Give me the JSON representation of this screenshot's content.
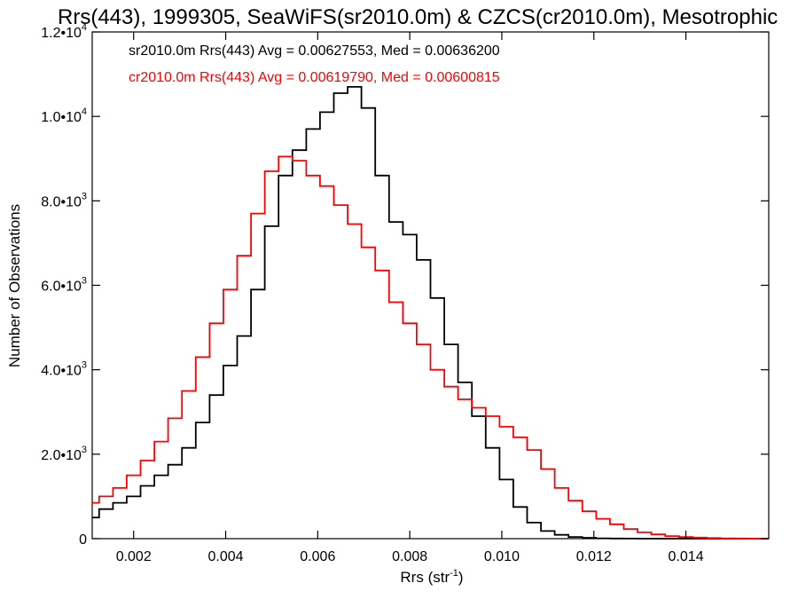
{
  "chart_data": {
    "type": "line",
    "title": "Rrs(443), 1999305, SeaWiFS(sr2010.0m) & CZCS(cr2010.0m), Mesotrophic",
    "xlabel": "Rrs (str",
    "xlabel_exp": "-1",
    "xlabel_close": ")",
    "ylabel": "Number of Observations",
    "xlim": [
      0.0011,
      0.0158
    ],
    "ylim": [
      0,
      12000
    ],
    "x_ticks": [
      {
        "value": 0.002,
        "label": "0.002"
      },
      {
        "value": 0.004,
        "label": "0.004"
      },
      {
        "value": 0.006,
        "label": "0.006"
      },
      {
        "value": 0.008,
        "label": "0.008"
      },
      {
        "value": 0.01,
        "label": "0.010"
      },
      {
        "value": 0.012,
        "label": "0.012"
      },
      {
        "value": 0.014,
        "label": "0.014"
      }
    ],
    "y_ticks": [
      {
        "value": 0,
        "label": "0",
        "exp": ""
      },
      {
        "value": 2000,
        "label": "2.0•10",
        "exp": "3"
      },
      {
        "value": 4000,
        "label": "4.0•10",
        "exp": "3"
      },
      {
        "value": 6000,
        "label": "6.0•10",
        "exp": "3"
      },
      {
        "value": 8000,
        "label": "8.0•10",
        "exp": "3"
      },
      {
        "value": 10000,
        "label": "1.0•10",
        "exp": "4"
      },
      {
        "value": 12000,
        "label": "1.2•10",
        "exp": "4"
      }
    ],
    "legend": [
      {
        "text": "sr2010.0m Rrs(443) Avg = 0.00627553, Med = 0.00636200",
        "color": "#000000"
      },
      {
        "text": "cr2010.0m Rrs(443) Avg = 0.00619790, Med = 0.00600815",
        "color": "#ff0000"
      }
    ],
    "series": [
      {
        "key": "sr2010.0m",
        "color": "#000000",
        "x": [
          0.0011,
          0.0014,
          0.0017,
          0.002,
          0.0023,
          0.0026,
          0.0029,
          0.0032,
          0.0035,
          0.0038,
          0.0041,
          0.0044,
          0.0047,
          0.005,
          0.0053,
          0.0056,
          0.0059,
          0.0062,
          0.0065,
          0.0068,
          0.0071,
          0.0074,
          0.0077,
          0.008,
          0.0083,
          0.0086,
          0.0089,
          0.0092,
          0.0095,
          0.0098,
          0.0101,
          0.0104,
          0.0107,
          0.011,
          0.0113,
          0.0116,
          0.0119,
          0.0122,
          0.0125,
          0.0128,
          0.0131,
          0.0134,
          0.0137,
          0.014,
          0.0143,
          0.0146,
          0.0149,
          0.0152,
          0.0155,
          0.0158
        ],
        "y": [
          500,
          700,
          850,
          1000,
          1250,
          1500,
          1750,
          2150,
          2750,
          3400,
          4100,
          4800,
          5900,
          7400,
          8600,
          9200,
          9700,
          10100,
          10550,
          10700,
          10200,
          8600,
          7500,
          7200,
          6600,
          5700,
          4600,
          3700,
          2900,
          2150,
          1400,
          750,
          380,
          180,
          90,
          40,
          20,
          8,
          4,
          2,
          1,
          0,
          0,
          0,
          0,
          0,
          0,
          0,
          0,
          0
        ]
      },
      {
        "key": "cr2010.0m",
        "color": "#ff0000",
        "x": [
          0.0011,
          0.0014,
          0.0017,
          0.002,
          0.0023,
          0.0026,
          0.0029,
          0.0032,
          0.0035,
          0.0038,
          0.0041,
          0.0044,
          0.0047,
          0.005,
          0.0053,
          0.0056,
          0.0059,
          0.0062,
          0.0065,
          0.0068,
          0.0071,
          0.0074,
          0.0077,
          0.008,
          0.0083,
          0.0086,
          0.0089,
          0.0092,
          0.0095,
          0.0098,
          0.0101,
          0.0104,
          0.0107,
          0.011,
          0.0113,
          0.0116,
          0.0119,
          0.0122,
          0.0125,
          0.0128,
          0.0131,
          0.0134,
          0.0137,
          0.014,
          0.0143,
          0.0146,
          0.0149,
          0.0152,
          0.0155,
          0.0158
        ],
        "y": [
          850,
          1000,
          1200,
          1500,
          1850,
          2300,
          2850,
          3500,
          4300,
          5100,
          5900,
          6700,
          7700,
          8700,
          9050,
          8950,
          8600,
          8350,
          7900,
          7450,
          6900,
          6350,
          5600,
          5100,
          4600,
          4000,
          3600,
          3300,
          3100,
          2900,
          2650,
          2400,
          2100,
          1650,
          1200,
          900,
          650,
          470,
          340,
          230,
          150,
          100,
          60,
          40,
          25,
          15,
          8,
          5,
          3,
          2
        ]
      }
    ]
  }
}
